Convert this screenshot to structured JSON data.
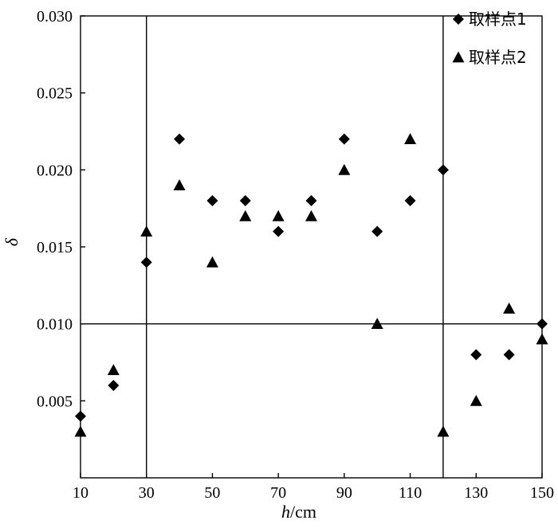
{
  "chart_data": {
    "type": "scatter",
    "xlabel": {
      "var": "h",
      "unit": "/cm"
    },
    "ylabel": "δ",
    "xlim": [
      10,
      150
    ],
    "ylim": [
      0,
      0.03
    ],
    "x_ticks": [
      10,
      30,
      50,
      70,
      90,
      110,
      130,
      150
    ],
    "x_tick_labels": [
      "10",
      "30",
      "50",
      "70",
      "90",
      "110",
      "130",
      "150"
    ],
    "y_ticks": [
      0.005,
      0.01,
      0.015,
      0.02,
      0.025,
      0.03
    ],
    "y_tick_labels": [
      "0.005",
      "0.010",
      "0.015",
      "0.020",
      "0.025",
      "0.030"
    ],
    "grid": false,
    "legend_position": "top-right",
    "reference_lines": {
      "vertical_x": [
        30,
        120
      ],
      "horizontal_y": [
        0.01
      ]
    },
    "series": [
      {
        "name": "取样点1",
        "marker": "diamond",
        "x": [
          10,
          20,
          30,
          40,
          50,
          60,
          70,
          80,
          90,
          100,
          110,
          120,
          130,
          140,
          150
        ],
        "y": [
          0.004,
          0.006,
          0.014,
          0.022,
          0.018,
          0.018,
          0.016,
          0.018,
          0.022,
          0.016,
          0.018,
          0.02,
          0.008,
          0.008,
          0.01
        ]
      },
      {
        "name": "取样点2",
        "marker": "triangle",
        "x": [
          10,
          20,
          30,
          40,
          50,
          60,
          70,
          80,
          90,
          100,
          110,
          120,
          130,
          140,
          150
        ],
        "y": [
          0.003,
          0.007,
          0.016,
          0.019,
          0.014,
          0.017,
          0.017,
          0.017,
          0.02,
          0.01,
          0.022,
          0.003,
          0.005,
          0.011,
          0.009
        ]
      }
    ]
  }
}
